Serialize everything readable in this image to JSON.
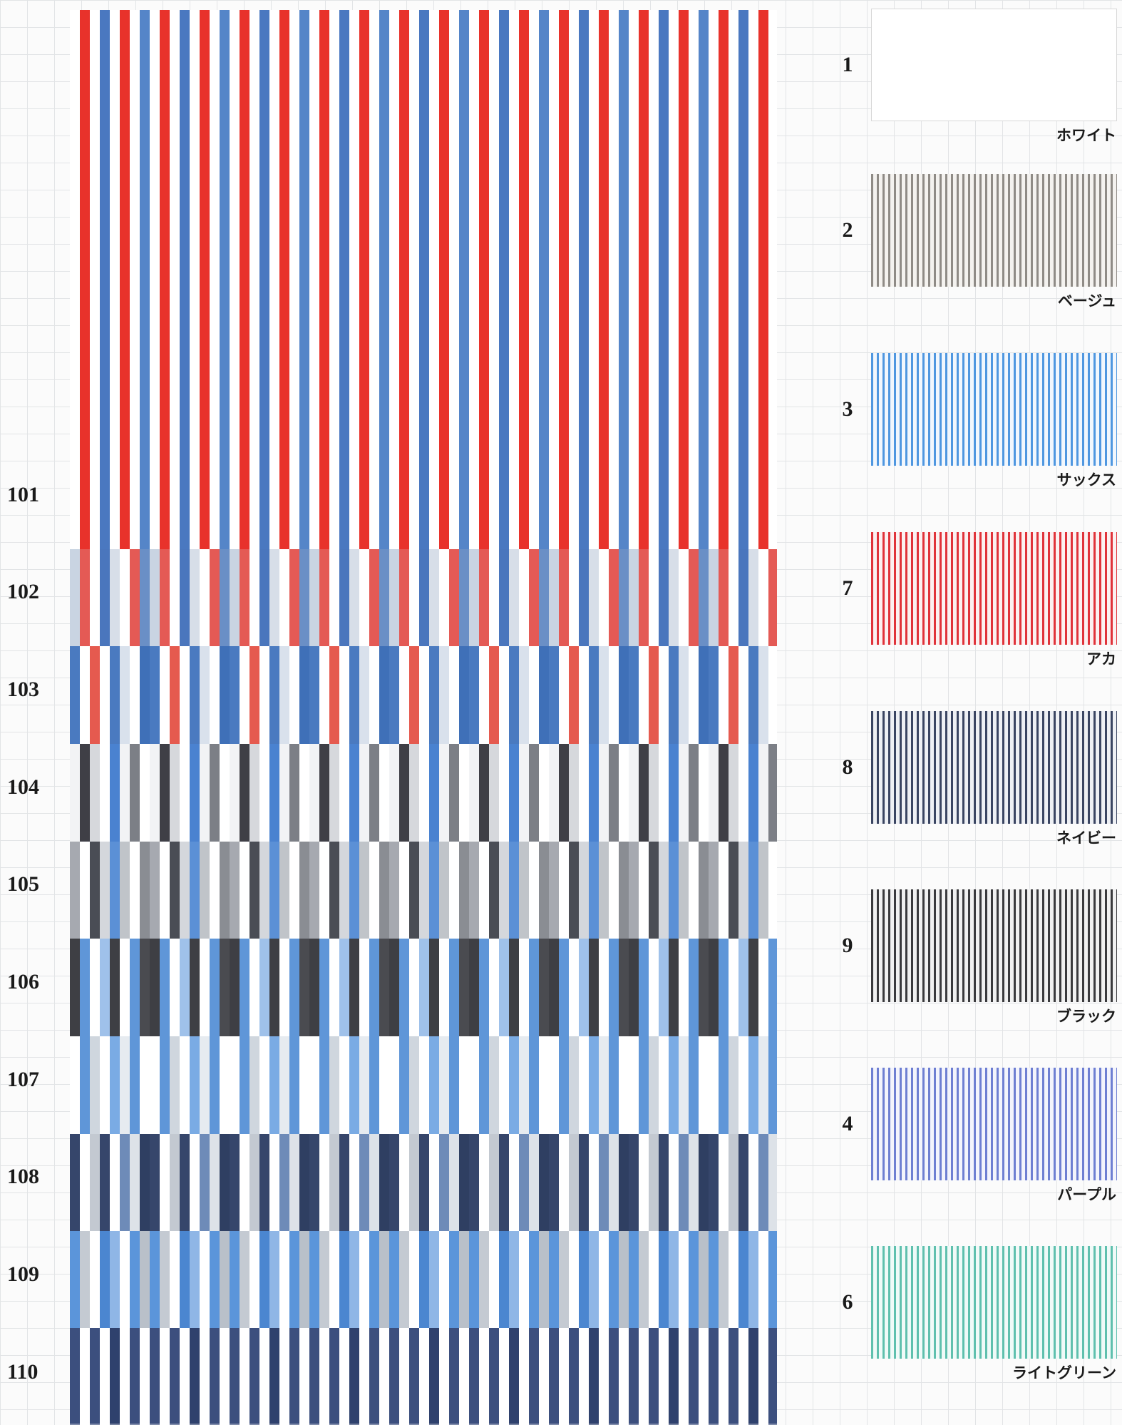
{
  "rows": [
    {
      "label": "101",
      "pattern": [
        "#ffffff",
        "#e8322b",
        "#ffffff",
        "#4a78c0",
        "#ffffff",
        "#e8322b",
        "#ffffff",
        "#5585c8"
      ]
    },
    {
      "label": "102",
      "pattern": [
        "#c9d4e2",
        "#e45a55",
        "#ffffff",
        "#4a76bd",
        "#d7dee8",
        "#ffffff",
        "#e45a55",
        "#6a8fc6"
      ]
    },
    {
      "label": "103",
      "pattern": [
        "#4a7ac0",
        "#ffffff",
        "#e55a4f",
        "#ffffff",
        "#4a7ac0",
        "#d9e1ec",
        "#ffffff",
        "#3f70b8"
      ]
    },
    {
      "label": "104",
      "pattern": [
        "#f2f3f5",
        "#3f3f46",
        "#d6d8dc",
        "#ffffff",
        "#4a82d0",
        "#f2f3f5",
        "#7c7f86",
        "#ffffff"
      ]
    },
    {
      "label": "105",
      "pattern": [
        "#a6a9b0",
        "#ffffff",
        "#4a4d55",
        "#d4d7dc",
        "#5b90d6",
        "#c0c4c9",
        "#ffffff",
        "#8a8d93"
      ]
    },
    {
      "label": "106",
      "pattern": [
        "#3e3f44",
        "#5f96d8",
        "#ffffff",
        "#9fc1ea",
        "#3e3f44",
        "#ffffff",
        "#5f96d8",
        "#4a4b50"
      ]
    },
    {
      "label": "107",
      "pattern": [
        "#ffffff",
        "#5f96d8",
        "#cfd6de",
        "#ffffff",
        "#7aabe4",
        "#e6ebf0",
        "#5f96d8",
        "#ffffff"
      ]
    },
    {
      "label": "108",
      "pattern": [
        "#36466b",
        "#ffffff",
        "#c3c9d1",
        "#36466b",
        "#ffffff",
        "#6e8bb8",
        "#dde2e8",
        "#2f3f62"
      ]
    },
    {
      "label": "109",
      "pattern": [
        "#5b95da",
        "#c4cad2",
        "#ffffff",
        "#4b86d0",
        "#8fb6e6",
        "#ffffff",
        "#5b95da",
        "#b9c0c9"
      ]
    },
    {
      "label": "110",
      "pattern": [
        "#3c4f7e",
        "#ffffff",
        "#3c4f7e",
        "#ffffff",
        "#2f416d",
        "#ffffff",
        "#3c4f7e",
        "#ffffff"
      ]
    }
  ],
  "swatches": [
    {
      "number": "1",
      "name": "ホワイト",
      "stripe": "#ffffff",
      "ground": "#ffffff"
    },
    {
      "number": "2",
      "name": "ベージュ",
      "stripe": "#8f8b86",
      "ground": "#f4f2ef"
    },
    {
      "number": "3",
      "name": "サックス",
      "stripe": "#4f97e0",
      "ground": "#f2f7fd"
    },
    {
      "number": "7",
      "name": "アカ",
      "stripe": "#e0333a",
      "ground": "#fbf1f1"
    },
    {
      "number": "8",
      "name": "ネイビー",
      "stripe": "#3a4562",
      "ground": "#eef0f4"
    },
    {
      "number": "9",
      "name": "ブラック",
      "stripe": "#3a3a3d",
      "ground": "#f1f1f1"
    },
    {
      "number": "4",
      "name": "パープル",
      "stripe": "#6e7fd2",
      "ground": "#f3f4fc"
    },
    {
      "number": "6",
      "name": "ライトグリーン",
      "stripe": "#5fc0ae",
      "ground": "#f0faf8"
    }
  ]
}
